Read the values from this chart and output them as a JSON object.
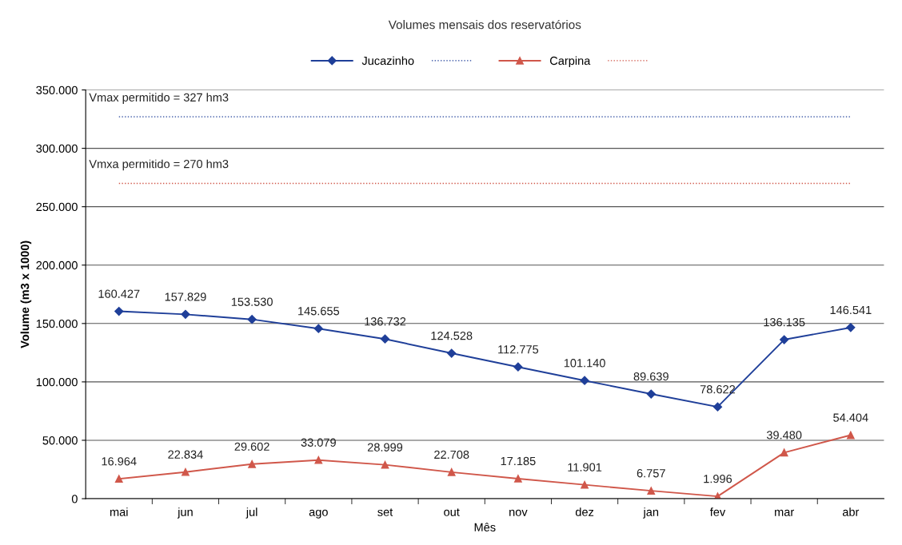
{
  "chart_data": {
    "type": "line",
    "title": "Volumes mensais dos reservatórios",
    "xlabel": "Mês",
    "ylabel": "Volume (m3 x 1000)",
    "categories": [
      "mai",
      "jun",
      "jul",
      "ago",
      "set",
      "out",
      "nov",
      "dez",
      "jan",
      "fev",
      "mar",
      "abr"
    ],
    "series": [
      {
        "name": "Jucazinho",
        "color": "#1f3f99",
        "marker": "diamond",
        "line_style": "solid",
        "values": [
          160427,
          157829,
          153530,
          145655,
          136732,
          124528,
          112775,
          101140,
          89639,
          78622,
          136135,
          146541
        ],
        "value_labels": [
          "160.427",
          "157.829",
          "153.530",
          "145.655",
          "136.732",
          "124.528",
          "112.775",
          "101.140",
          "89.639",
          "78.622",
          "136.135",
          "146.541"
        ]
      },
      {
        "color": "#1f3f99",
        "marker": "none",
        "line_style": "dotted",
        "values": [
          327000,
          327000,
          327000,
          327000,
          327000,
          327000,
          327000,
          327000,
          327000,
          327000,
          327000,
          327000
        ]
      },
      {
        "name": "Carpina",
        "color": "#d0574a",
        "marker": "triangle",
        "line_style": "solid",
        "values": [
          16964,
          22834,
          29602,
          33079,
          28999,
          22708,
          17185,
          11901,
          6757,
          1996,
          39480,
          54404
        ],
        "value_labels": [
          "16.964",
          "22.834",
          "29.602",
          "33.079",
          "28.999",
          "22.708",
          "17.185",
          "11.901",
          "6.757",
          "1.996",
          "39.480",
          "54.404"
        ]
      },
      {
        "color": "#d0574a",
        "marker": "none",
        "line_style": "dotted",
        "values": [
          270000,
          270000,
          270000,
          270000,
          270000,
          270000,
          270000,
          270000,
          270000,
          270000,
          270000,
          270000
        ]
      }
    ],
    "annotations": [
      {
        "text": "Vmax permitido = 327 hm3",
        "y": 327000
      },
      {
        "text": "Vmxa permitido = 270 hm3",
        "y": 270000
      }
    ],
    "ylim": [
      0,
      350000
    ],
    "yticks": [
      {
        "value": 0,
        "label": "0"
      },
      {
        "value": 50000,
        "label": "50.000"
      },
      {
        "value": 100000,
        "label": "100.000"
      },
      {
        "value": 150000,
        "label": "150.000"
      },
      {
        "value": 200000,
        "label": "200.000"
      },
      {
        "value": 250000,
        "label": "250.000"
      },
      {
        "value": 300000,
        "label": "300.000"
      },
      {
        "value": 350000,
        "label": "350.000"
      }
    ],
    "grid": "y",
    "legend": "top"
  }
}
